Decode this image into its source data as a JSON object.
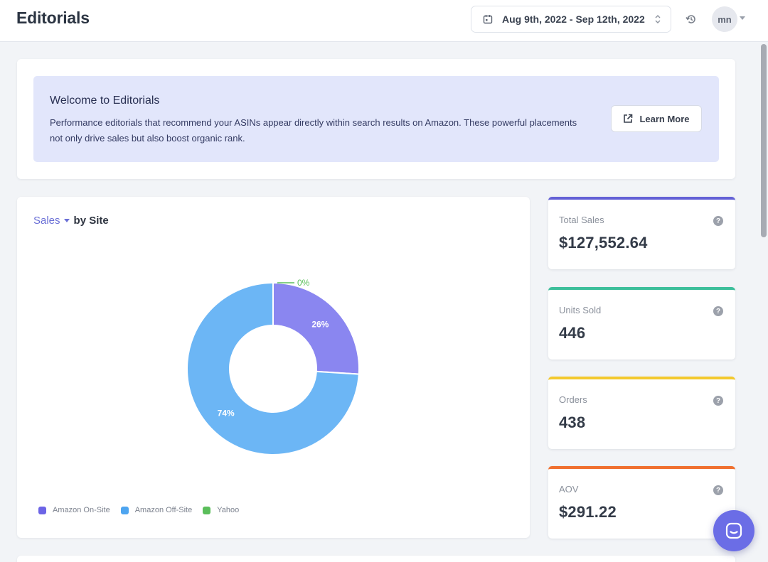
{
  "header": {
    "title": "Editorials",
    "date_range": "Aug 9th, 2022 - Sep 12th, 2022",
    "avatar_initials": "mn"
  },
  "welcome": {
    "title": "Welcome to Editorials",
    "text": "Performance editorials that recommend your ASINs appear directly within search results on Amazon. These powerful placements not only drive sales but also boost organic rank.",
    "learn_more_label": "Learn More"
  },
  "chart_section": {
    "metric": "Sales",
    "by_label": "by Site"
  },
  "chart_data": {
    "type": "pie",
    "categories": [
      "Amazon On-Site",
      "Amazon Off-Site",
      "Yahoo"
    ],
    "values": [
      26,
      74,
      0
    ],
    "labels": [
      "26%",
      "74%",
      "0%"
    ],
    "colors": [
      "#8a86f0",
      "#6cb6f5",
      "#5bbe5b"
    ],
    "legend_swatch_colors": [
      "#6c64e6",
      "#4ea5f0",
      "#5bbe5b"
    ],
    "legend": "bottom-left",
    "donut": true,
    "title": "",
    "xlabel": "",
    "ylabel": ""
  },
  "stats": [
    {
      "label": "Total Sales",
      "value": "$127,552.64",
      "color": "#6461d6"
    },
    {
      "label": "Units Sold",
      "value": "446",
      "color": "#3dbf9b"
    },
    {
      "label": "Orders",
      "value": "438",
      "color": "#f3c92e"
    },
    {
      "label": "AOV",
      "value": "$291.22",
      "color": "#f0702f"
    }
  ],
  "help_glyph": "?",
  "icons": {
    "date_picker": "calendar-icon",
    "date_sort": "up-down-chevron-icon",
    "history": "history-icon",
    "avatar_menu": "caret-down-icon",
    "learn_more": "external-link-icon",
    "help": "question-circle-icon",
    "chat": "chat-launcher-icon"
  }
}
